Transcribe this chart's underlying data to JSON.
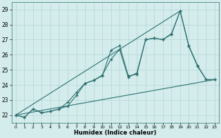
{
  "title": "",
  "xlabel": "Humidex (Indice chaleur)",
  "ylabel": "",
  "bg_color": "#d4ecec",
  "grid_color": "#b8d8d8",
  "line_color": "#2d7070",
  "xlim": [
    -0.5,
    23.5
  ],
  "ylim": [
    21.5,
    29.5
  ],
  "xticks": [
    0,
    1,
    2,
    3,
    4,
    5,
    6,
    7,
    8,
    9,
    10,
    11,
    12,
    13,
    14,
    15,
    16,
    17,
    18,
    19,
    20,
    21,
    22,
    23
  ],
  "yticks": [
    22,
    23,
    24,
    25,
    26,
    27,
    28,
    29
  ],
  "line1_x": [
    0,
    1,
    2,
    3,
    4,
    5,
    6,
    7,
    8,
    9,
    10,
    11,
    12,
    13,
    14,
    15,
    16,
    17,
    18,
    19,
    20,
    21,
    22,
    23
  ],
  "line1_y": [
    22.0,
    21.85,
    22.4,
    22.15,
    22.25,
    22.4,
    22.85,
    23.5,
    24.1,
    24.3,
    24.6,
    26.3,
    26.6,
    24.6,
    24.7,
    27.0,
    27.1,
    27.0,
    27.4,
    28.9,
    26.6,
    25.3,
    24.35,
    24.35
  ],
  "line2_x": [
    0,
    1,
    2,
    3,
    4,
    5,
    6,
    7,
    8,
    9,
    10,
    11,
    12,
    13,
    14,
    15,
    16,
    17,
    18,
    19,
    20,
    21,
    22,
    23
  ],
  "line2_y": [
    22.0,
    21.85,
    22.4,
    22.15,
    22.25,
    22.4,
    22.6,
    23.3,
    24.1,
    24.3,
    24.65,
    25.7,
    26.35,
    24.5,
    24.8,
    27.0,
    27.1,
    27.0,
    27.35,
    28.9,
    26.55,
    25.25,
    24.35,
    24.35
  ],
  "line3_x": [
    0,
    23
  ],
  "line3_y": [
    22.0,
    24.35
  ],
  "line4_x": [
    0,
    19
  ],
  "line4_y": [
    22.0,
    28.9
  ]
}
